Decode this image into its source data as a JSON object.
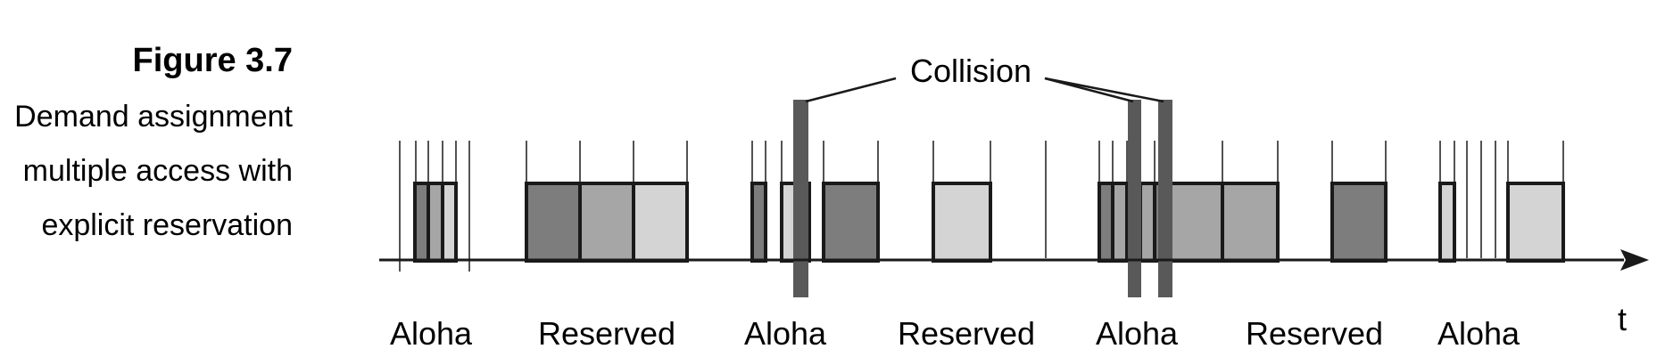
{
  "caption": {
    "figure_number": "Figure 3.7",
    "description_lines": [
      "Demand assignment",
      "multiple access with",
      "explicit reservation"
    ]
  },
  "diagram": {
    "collision_label": "Collision",
    "axis_label": "t",
    "phases": [
      {
        "label": "Aloha"
      },
      {
        "label": "Reserved"
      },
      {
        "label": "Aloha"
      },
      {
        "label": "Reserved"
      },
      {
        "label": "Aloha"
      },
      {
        "label": "Reserved"
      },
      {
        "label": "Aloha"
      }
    ],
    "colors": {
      "dark": "#7d7d7d",
      "medium": "#a6a6a6",
      "light": "#d4d4d4",
      "collision": "#595959",
      "outline": "#1a1a1a"
    }
  }
}
